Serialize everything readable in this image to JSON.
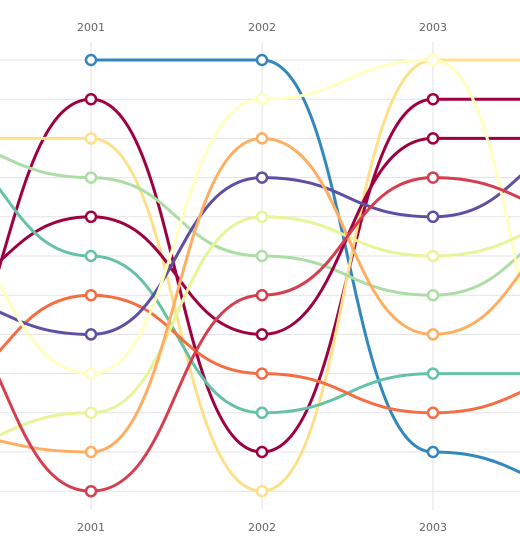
{
  "chart_data": {
    "type": "line",
    "chart_style": "bump chart (ranking lines with smooth curves)",
    "x": [
      "2001",
      "2002",
      "2003"
    ],
    "y_axis": {
      "type": "rank",
      "range": [
        1,
        12
      ],
      "direction": "1 at top",
      "labels_shown": false
    },
    "grid": {
      "horizontal": true,
      "vertical": true
    },
    "legend": "none",
    "title": "",
    "xlabel": "",
    "ylabel": "",
    "series": [
      {
        "color": "#3288bd",
        "ranks": [
          1,
          1,
          11
        ],
        "end_rank": 12
      },
      {
        "color": "#9e0142",
        "ranks": [
          2,
          11,
          2
        ],
        "start_rank": 9.5
      },
      {
        "color": "#fee08b",
        "ranks": [
          3,
          12,
          1
        ],
        "start_rank": 3
      },
      {
        "color": "#abdda4",
        "ranks": [
          4,
          6,
          7
        ],
        "start_rank": 3,
        "end_rank": 5
      },
      {
        "color": "#9e0142",
        "ranks": [
          5,
          8,
          3
        ],
        "start_rank": 7,
        "end_rank": 3
      },
      {
        "color": "#66c2a5",
        "ranks": [
          6,
          10,
          9
        ],
        "start_rank": 3,
        "end_rank": 9
      },
      {
        "color": "#f46d43",
        "ranks": [
          7,
          9,
          10
        ],
        "start_rank": 9.5,
        "end_rank": 9
      },
      {
        "color": "#5e4fa2",
        "ranks": [
          8,
          4,
          5
        ],
        "start_rank": 7,
        "end_rank": 3
      },
      {
        "color": "#ffffbf",
        "ranks": [
          9,
          2,
          1
        ],
        "start_rank": 5,
        "end_rank": 12
      },
      {
        "color": "#e6f598",
        "ranks": [
          10,
          5,
          6
        ],
        "start_rank": 11,
        "end_rank": 5
      },
      {
        "color": "#fdae61",
        "ranks": [
          11,
          3,
          8
        ],
        "start_rank": 10.5,
        "end_rank": 5
      },
      {
        "color": "#d53e4f",
        "ranks": [
          12,
          7,
          4
        ],
        "start_rank": 7,
        "end_rank": 5
      }
    ]
  }
}
